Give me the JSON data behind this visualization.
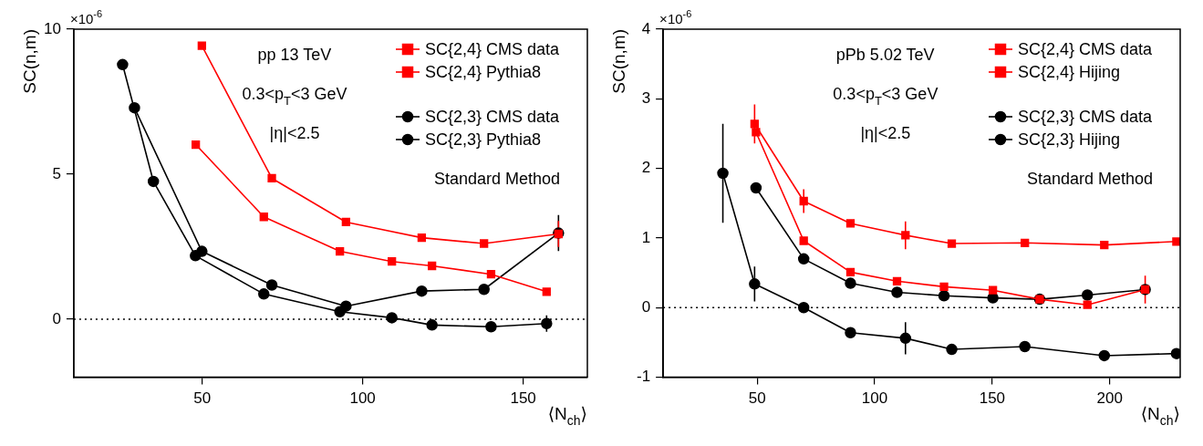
{
  "chart_data": [
    {
      "type": "line",
      "xlabel": "⟨N$_{ch}$⟩",
      "ylabel": "SC(n,m)",
      "xlim": [
        10,
        170
      ],
      "xticks": [
        50,
        100,
        150
      ],
      "ylim": [
        -2,
        10
      ],
      "yticks": [
        0,
        5,
        10
      ],
      "grid": false,
      "legend": "top right",
      "line_style": "solid",
      "annotations": [
        "×10$^{-6}$",
        "pp 13 TeV",
        "0.3<p$_{T}$<3 GeV",
        "|η|<2.5",
        "Standard Method"
      ],
      "ref_lines": [
        {
          "axis": "y",
          "value": 0,
          "color": "#000000",
          "line_style": "dotted"
        }
      ],
      "series": [
        {
          "name": "SC{2,4} CMS data",
          "color": "#ff0000",
          "marker": "square",
          "x": [
            48,
            69.2,
            92.9,
            109.1,
            121.6,
            140,
            157.3
          ],
          "values": [
            6.02,
            3.53,
            2.34,
            1.99,
            1.84,
            1.55,
            0.95
          ]
        },
        {
          "name": "SC{2,4} Pythia8",
          "color": "#ff0000",
          "marker": "square",
          "x": [
            49.9,
            71.7,
            94.8,
            118.4,
            137.8,
            161
          ],
          "values": [
            9.43,
            4.86,
            3.35,
            2.81,
            2.61,
            2.94
          ],
          "errors": [
            null,
            null,
            null,
            null,
            null,
            0.45
          ]
        },
        {
          "name": "SC{2,3} CMS data",
          "color": "#000000",
          "marker": "circle",
          "x": [
            25.2,
            34.8,
            47.9,
            69.2,
            92.9,
            109.1,
            121.6,
            140,
            157.3
          ],
          "values": [
            8.78,
            4.75,
            2.19,
            0.87,
            0.26,
            0.05,
            -0.2,
            -0.26,
            -0.15
          ],
          "errors": [
            null,
            null,
            null,
            null,
            null,
            null,
            null,
            null,
            0.28
          ]
        },
        {
          "name": "SC{2,3} Pythia8",
          "color": "#000000",
          "marker": "circle",
          "x": [
            28.9,
            49.9,
            71.7,
            94.8,
            118.4,
            137.8,
            161
          ],
          "values": [
            7.29,
            2.34,
            1.18,
            0.45,
            0.97,
            1.03,
            2.97
          ],
          "errors": [
            null,
            null,
            null,
            null,
            null,
            null,
            0.62
          ]
        }
      ]
    },
    {
      "type": "line",
      "xlabel": "⟨N$_{ch}$⟩",
      "ylabel": "SC(n,m)",
      "xlim": [
        10,
        230
      ],
      "xticks": [
        50,
        100,
        150,
        200
      ],
      "ylim": [
        -1,
        4
      ],
      "yticks": [
        -1,
        0,
        1,
        2,
        3,
        4
      ],
      "grid": false,
      "legend": "top right",
      "line_style": "solid",
      "annotations": [
        "×10$^{-6}$",
        "pPb 5.02 TeV",
        "0.3<p$_{T}$<3 GeV",
        "|η|<2.5",
        "Standard Method"
      ],
      "ref_lines": [
        {
          "axis": "y",
          "value": 0,
          "color": "#000000",
          "line_style": "dotted"
        }
      ],
      "series": [
        {
          "name": "SC{2,4} CMS data",
          "color": "#ff0000",
          "marker": "square",
          "x": [
            48.9,
            69.8,
            89.7,
            113.1,
            132.8,
            163.9,
            197.7,
            228.4
          ],
          "values": [
            2.64,
            1.53,
            1.21,
            1.04,
            0.92,
            0.93,
            0.9,
            0.95
          ],
          "errors": [
            0.28,
            0.17,
            null,
            0.2,
            null,
            null,
            null,
            null
          ]
        },
        {
          "name": "SC{2,4} Hijing",
          "color": "#ff0000",
          "marker": "square",
          "x": [
            49.5,
            69.8,
            89.7,
            109.5,
            129.5,
            150.3,
            170.2,
            190.5,
            215.1
          ],
          "values": [
            2.52,
            0.96,
            0.51,
            0.38,
            0.3,
            0.25,
            0.12,
            0.04,
            0.26
          ],
          "errors": [
            null,
            null,
            null,
            null,
            null,
            null,
            null,
            null,
            0.2
          ]
        },
        {
          "name": "SC{2,3} CMS data",
          "color": "#000000",
          "marker": "circle",
          "x": [
            35.4,
            48.9,
            69.8,
            89.7,
            113.1,
            132.8,
            163.9,
            197.7,
            228.4
          ],
          "values": [
            1.93,
            0.34,
            0,
            -0.36,
            -0.44,
            -0.6,
            -0.56,
            -0.69,
            -0.66
          ],
          "errors": [
            0.71,
            0.25,
            null,
            null,
            0.23,
            null,
            null,
            null,
            null
          ]
        },
        {
          "name": "SC{2,3} Hijing",
          "color": "#000000",
          "marker": "circle",
          "x": [
            49.5,
            69.8,
            89.7,
            109.5,
            129.5,
            150.3,
            170.2,
            190.5,
            215.1
          ],
          "values": [
            1.72,
            0.7,
            0.35,
            0.22,
            0.17,
            0.14,
            0.12,
            0.18,
            0.26
          ]
        }
      ]
    }
  ]
}
